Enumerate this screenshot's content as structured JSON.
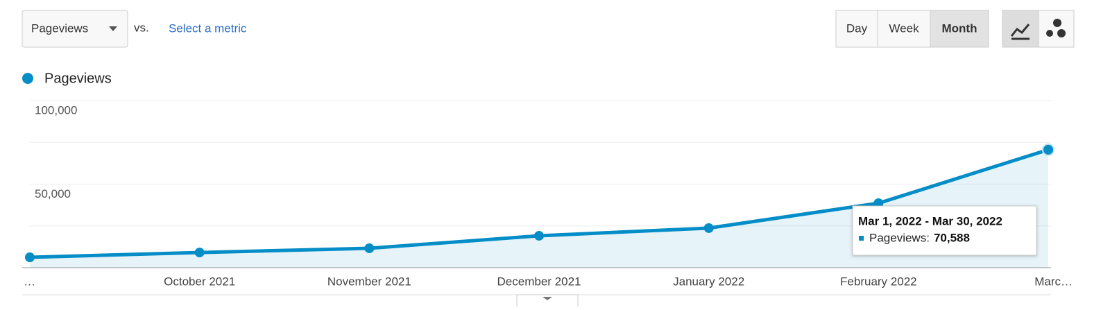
{
  "toolbar": {
    "metric": "Pageviews",
    "vs": "vs.",
    "select_metric": "Select a metric",
    "periods": [
      "Day",
      "Week",
      "Month"
    ],
    "selected_period": 2
  },
  "chart_data": {
    "type": "line",
    "legend": "Pageviews",
    "categories": [
      "…",
      "October 2021",
      "November 2021",
      "December 2021",
      "January 2022",
      "February 2022",
      "Marc…"
    ],
    "series": [
      {
        "name": "Pageviews",
        "color": "#058dc7",
        "values": [
          6200,
          9100,
          11600,
          19100,
          23700,
          38600,
          70588
        ]
      }
    ],
    "ylim": [
      0,
      100000
    ],
    "yticks": [
      {
        "value": 25000,
        "label": null
      },
      {
        "value": 50000,
        "label": "50,000"
      },
      {
        "value": 75000,
        "label": null
      },
      {
        "value": 100000,
        "label": "100,000"
      }
    ],
    "grid": true,
    "tooltip": {
      "point": 6,
      "title": "Mar 1, 2022 - Mar 30, 2022",
      "label": "Pageviews:",
      "value_label": "70,588"
    }
  }
}
